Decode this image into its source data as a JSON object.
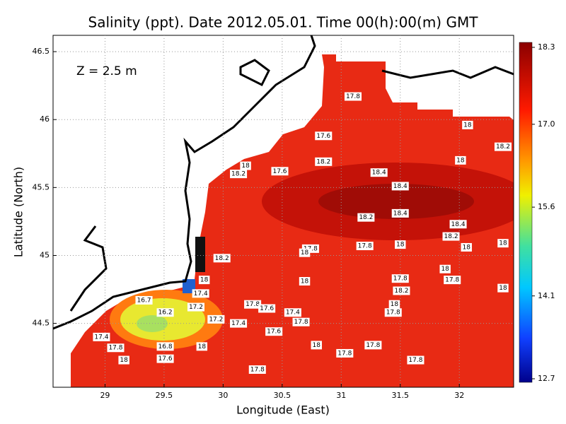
{
  "chart_data": {
    "type": "contour-map",
    "title": "Salinity (ppt). Date 2012.05.01. Time 00(h):00(m) GMT",
    "annotation": "Z = 2.5 m",
    "x_label": "Longitude (East)",
    "y_label": "Latitude (North)",
    "xlim": [
      28.56,
      32.46
    ],
    "xticks": [
      29,
      29.5,
      30,
      30.5,
      31,
      31.5,
      32
    ],
    "ylim": [
      44.03,
      46.62
    ],
    "yticks": [
      44.5,
      45,
      45.5,
      46,
      46.5
    ],
    "grid": true,
    "colorbar_lim": [
      12.7,
      18.3
    ],
    "colorbar_ticks": [
      12.7,
      14.1,
      15.6,
      {
        "value": 17,
        "label": "17.0"
      },
      18.3
    ],
    "contour_labels": {
      "values": [
        17.8,
        17.6,
        18,
        18.2,
        18,
        18.2,
        17.6,
        18,
        18.2,
        18.4,
        18.4,
        18.4,
        18.2,
        18.4,
        18.2,
        18,
        18,
        18,
        17.8,
        17.8,
        18,
        18.2,
        18,
        17.8,
        17.8,
        18,
        18,
        18.2,
        18,
        17.8,
        17.4,
        16.7,
        17.2,
        17.8,
        17.6,
        17.4,
        17.8,
        17.4,
        17.2,
        17.6,
        17.4,
        17.8,
        18,
        16.8,
        17.6,
        18,
        18,
        17.8,
        17.8,
        17.8,
        17.8,
        16.2,
        18
      ],
      "lon": [
        31.1,
        30.85,
        32.07,
        32.37,
        32.01,
        30.85,
        30.48,
        30.19,
        30.13,
        31.32,
        31.5,
        31.5,
        31.21,
        31.99,
        31.93,
        32.06,
        32.37,
        31.5,
        31.2,
        30.74,
        30.69,
        29.99,
        31.88,
        31.94,
        31.5,
        30.69,
        32.37,
        31.51,
        31.45,
        31.44,
        29.81,
        29.33,
        29.77,
        30.25,
        30.37,
        30.59,
        30.66,
        30.13,
        29.94,
        30.43,
        28.97,
        29.09,
        29.16,
        29.51,
        29.51,
        29.82,
        30.79,
        31.03,
        31.27,
        31.63,
        30.29,
        29.51,
        29.84
      ],
      "lat": [
        46.17,
        45.88,
        45.96,
        45.8,
        45.7,
        45.69,
        45.62,
        45.66,
        45.6,
        45.61,
        45.51,
        45.31,
        45.28,
        45.23,
        45.14,
        45.06,
        45.09,
        45.08,
        45.07,
        45.05,
        45.02,
        44.98,
        44.9,
        44.82,
        44.83,
        44.81,
        44.76,
        44.74,
        44.64,
        44.58,
        44.72,
        44.67,
        44.62,
        44.64,
        44.61,
        44.58,
        44.51,
        44.5,
        44.53,
        44.44,
        44.4,
        44.32,
        44.23,
        44.33,
        44.24,
        44.33,
        44.34,
        44.28,
        44.34,
        44.23,
        44.16,
        44.58,
        44.82
      ]
    }
  }
}
